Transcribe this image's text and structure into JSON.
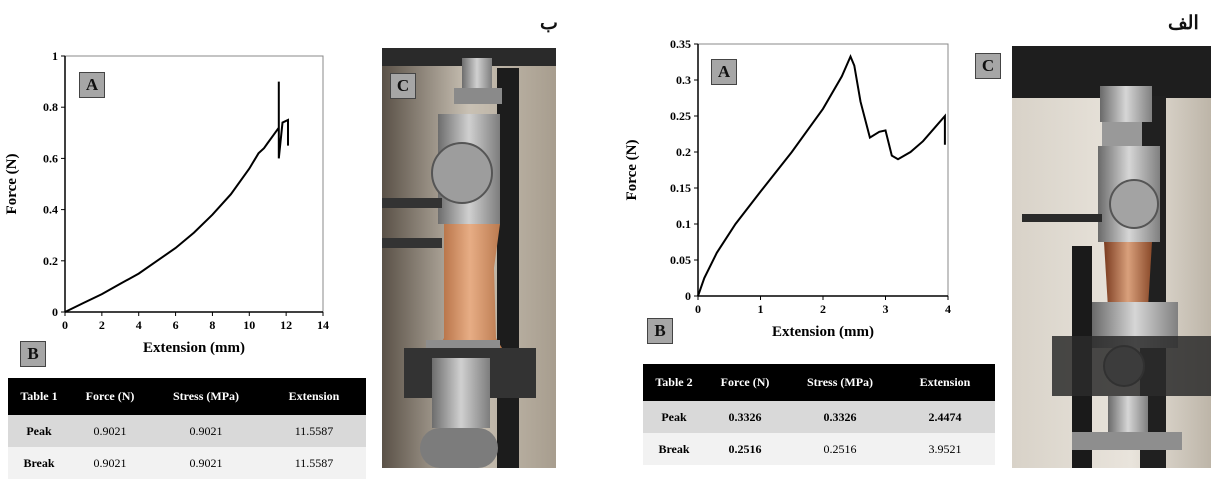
{
  "panels": {
    "left_tag": "ب",
    "right_tag": "الف"
  },
  "chart_data": [
    {
      "type": "line",
      "panel_label": "A",
      "xlabel": "Extension (mm)",
      "ylabel": "Force (N)",
      "xlim": [
        0,
        14
      ],
      "ylim": [
        0,
        1
      ],
      "xticks": [
        "0",
        "2",
        "4",
        "6",
        "8",
        "10",
        "12",
        "14"
      ],
      "yticks": [
        "0",
        "0.2",
        "0.4",
        "0.6",
        "0.8",
        "1"
      ],
      "series": [
        {
          "x": [
            0,
            1,
            2,
            3,
            4,
            5,
            6,
            7,
            8,
            9,
            10,
            10.5,
            10.8,
            11,
            11.3,
            11.6,
            11.6,
            11.6,
            11.8,
            12.1,
            12.1,
            12.1
          ],
          "y": [
            0,
            0.035,
            0.07,
            0.11,
            0.15,
            0.2,
            0.25,
            0.31,
            0.38,
            0.46,
            0.56,
            0.62,
            0.64,
            0.66,
            0.69,
            0.72,
            0.9,
            0.6,
            0.74,
            0.75,
            0.75,
            0.65
          ]
        }
      ]
    },
    {
      "type": "line",
      "panel_label": "A",
      "xlabel": "Extension (mm)",
      "ylabel": "Force (N)",
      "xlim": [
        0,
        4
      ],
      "ylim": [
        0,
        0.35
      ],
      "xticks": [
        "0",
        "1",
        "2",
        "3",
        "4"
      ],
      "yticks": [
        "0",
        "0.05",
        "0.1",
        "0.15",
        "0.2",
        "0.25",
        "0.3",
        "0.35"
      ],
      "series": [
        {
          "x": [
            0,
            0.1,
            0.3,
            0.6,
            1,
            1.5,
            2,
            2.3,
            2.44,
            2.5,
            2.6,
            2.75,
            2.9,
            3.0,
            3.1,
            3.2,
            3.4,
            3.6,
            3.8,
            3.95,
            3.95
          ],
          "y": [
            0,
            0.025,
            0.06,
            0.1,
            0.145,
            0.2,
            0.26,
            0.305,
            0.3326,
            0.32,
            0.27,
            0.22,
            0.228,
            0.23,
            0.195,
            0.19,
            0.2,
            0.215,
            0.235,
            0.25,
            0.21
          ]
        }
      ]
    }
  ],
  "labels": {
    "B": "B",
    "C": "C"
  },
  "table1": {
    "headers": [
      "Table 1",
      "Force (N)",
      "Stress (MPa)",
      "Extension"
    ],
    "rows": [
      [
        "Peak",
        "0.9021",
        "0.9021",
        "11.5587"
      ],
      [
        "Break",
        "0.9021",
        "0.9021",
        "11.5587"
      ]
    ]
  },
  "table2": {
    "headers": [
      "Table 2",
      "Force (N)",
      "Stress (MPa)",
      "Extension"
    ],
    "rows": [
      [
        "Peak",
        "0.3326",
        "0.3326",
        "2.4474"
      ],
      [
        "Break",
        "0.2516",
        "0.2516",
        "3.9521"
      ]
    ]
  }
}
